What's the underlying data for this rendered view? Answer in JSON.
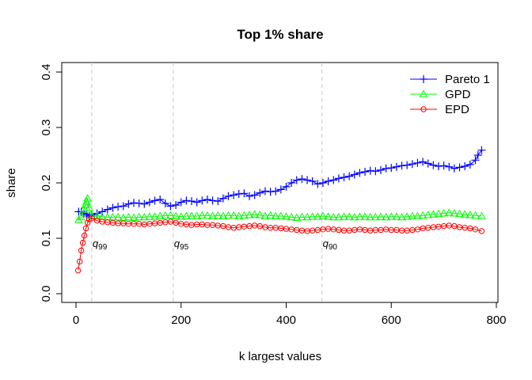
{
  "chart_data": {
    "type": "line",
    "title": "Top 1% share",
    "xlabel": "k largest values",
    "ylabel": "share",
    "xlim": [
      0,
      800
    ],
    "ylim": [
      0,
      0.4
    ],
    "x_ticks": [
      0,
      200,
      400,
      600,
      800
    ],
    "y_ticks": [
      0.0,
      0.1,
      0.2,
      0.3,
      0.4
    ],
    "x_tick_labels": [
      "0",
      "200",
      "400",
      "600",
      "800"
    ],
    "y_tick_labels": [
      "0.0",
      "0.1",
      "0.2",
      "0.3",
      "0.4"
    ],
    "legend_position": "top-right",
    "grid": false,
    "quantile_lines": [
      {
        "label": "q",
        "sub": "99",
        "x": 30
      },
      {
        "label": "q",
        "sub": "95",
        "x": 185
      },
      {
        "label": "q",
        "sub": "90",
        "x": 468
      }
    ],
    "series": [
      {
        "name": "Pareto 1",
        "color": "#0000FF",
        "marker": "plus",
        "points": [
          [
            5,
            0.148
          ],
          [
            10,
            0.148
          ],
          [
            15,
            0.145
          ],
          [
            20,
            0.143
          ],
          [
            25,
            0.14
          ],
          [
            30,
            0.142
          ],
          [
            40,
            0.145
          ],
          [
            50,
            0.148
          ],
          [
            60,
            0.152
          ],
          [
            70,
            0.155
          ],
          [
            80,
            0.157
          ],
          [
            90,
            0.158
          ],
          [
            100,
            0.162
          ],
          [
            110,
            0.164
          ],
          [
            120,
            0.163
          ],
          [
            130,
            0.162
          ],
          [
            140,
            0.165
          ],
          [
            150,
            0.168
          ],
          [
            160,
            0.17
          ],
          [
            170,
            0.163
          ],
          [
            180,
            0.158
          ],
          [
            190,
            0.16
          ],
          [
            200,
            0.165
          ],
          [
            210,
            0.168
          ],
          [
            220,
            0.167
          ],
          [
            230,
            0.165
          ],
          [
            240,
            0.168
          ],
          [
            250,
            0.17
          ],
          [
            260,
            0.168
          ],
          [
            270,
            0.167
          ],
          [
            280,
            0.172
          ],
          [
            290,
            0.176
          ],
          [
            300,
            0.178
          ],
          [
            310,
            0.18
          ],
          [
            320,
            0.181
          ],
          [
            330,
            0.176
          ],
          [
            340,
            0.178
          ],
          [
            350,
            0.182
          ],
          [
            360,
            0.185
          ],
          [
            370,
            0.184
          ],
          [
            380,
            0.185
          ],
          [
            390,
            0.188
          ],
          [
            400,
            0.193
          ],
          [
            410,
            0.2
          ],
          [
            420,
            0.205
          ],
          [
            430,
            0.207
          ],
          [
            440,
            0.205
          ],
          [
            450,
            0.203
          ],
          [
            460,
            0.198
          ],
          [
            470,
            0.2
          ],
          [
            480,
            0.203
          ],
          [
            490,
            0.205
          ],
          [
            500,
            0.208
          ],
          [
            510,
            0.21
          ],
          [
            520,
            0.212
          ],
          [
            530,
            0.215
          ],
          [
            540,
            0.218
          ],
          [
            550,
            0.22
          ],
          [
            560,
            0.222
          ],
          [
            570,
            0.221
          ],
          [
            580,
            0.223
          ],
          [
            590,
            0.226
          ],
          [
            600,
            0.227
          ],
          [
            610,
            0.229
          ],
          [
            620,
            0.231
          ],
          [
            630,
            0.232
          ],
          [
            640,
            0.234
          ],
          [
            650,
            0.236
          ],
          [
            660,
            0.238
          ],
          [
            670,
            0.235
          ],
          [
            680,
            0.232
          ],
          [
            690,
            0.23
          ],
          [
            700,
            0.231
          ],
          [
            710,
            0.229
          ],
          [
            720,
            0.226
          ],
          [
            730,
            0.228
          ],
          [
            740,
            0.23
          ],
          [
            750,
            0.233
          ],
          [
            760,
            0.241
          ],
          [
            765,
            0.25
          ],
          [
            772,
            0.259
          ]
        ]
      },
      {
        "name": "GPD",
        "color": "#00FF00",
        "marker": "triangle",
        "points": [
          [
            5,
            0.133
          ],
          [
            10,
            0.138
          ],
          [
            15,
            0.152
          ],
          [
            18,
            0.16
          ],
          [
            20,
            0.166
          ],
          [
            22,
            0.172
          ],
          [
            25,
            0.155
          ],
          [
            30,
            0.14
          ],
          [
            40,
            0.14
          ],
          [
            50,
            0.139
          ],
          [
            60,
            0.138
          ],
          [
            70,
            0.138
          ],
          [
            80,
            0.138
          ],
          [
            90,
            0.137
          ],
          [
            100,
            0.138
          ],
          [
            110,
            0.137
          ],
          [
            120,
            0.138
          ],
          [
            130,
            0.138
          ],
          [
            140,
            0.139
          ],
          [
            150,
            0.139
          ],
          [
            160,
            0.14
          ],
          [
            170,
            0.141
          ],
          [
            180,
            0.141
          ],
          [
            190,
            0.14
          ],
          [
            200,
            0.139
          ],
          [
            210,
            0.14
          ],
          [
            220,
            0.14
          ],
          [
            230,
            0.14
          ],
          [
            240,
            0.141
          ],
          [
            250,
            0.141
          ],
          [
            260,
            0.14
          ],
          [
            270,
            0.141
          ],
          [
            280,
            0.14
          ],
          [
            290,
            0.141
          ],
          [
            300,
            0.141
          ],
          [
            310,
            0.14
          ],
          [
            320,
            0.141
          ],
          [
            330,
            0.142
          ],
          [
            340,
            0.143
          ],
          [
            350,
            0.142
          ],
          [
            360,
            0.14
          ],
          [
            370,
            0.141
          ],
          [
            380,
            0.14
          ],
          [
            390,
            0.14
          ],
          [
            400,
            0.139
          ],
          [
            410,
            0.138
          ],
          [
            420,
            0.137
          ],
          [
            430,
            0.138
          ],
          [
            440,
            0.138
          ],
          [
            450,
            0.139
          ],
          [
            460,
            0.139
          ],
          [
            470,
            0.14
          ],
          [
            480,
            0.139
          ],
          [
            490,
            0.138
          ],
          [
            500,
            0.138
          ],
          [
            510,
            0.139
          ],
          [
            520,
            0.139
          ],
          [
            530,
            0.138
          ],
          [
            540,
            0.139
          ],
          [
            550,
            0.139
          ],
          [
            560,
            0.138
          ],
          [
            570,
            0.138
          ],
          [
            580,
            0.139
          ],
          [
            590,
            0.138
          ],
          [
            600,
            0.139
          ],
          [
            610,
            0.139
          ],
          [
            620,
            0.138
          ],
          [
            630,
            0.139
          ],
          [
            640,
            0.14
          ],
          [
            650,
            0.14
          ],
          [
            660,
            0.141
          ],
          [
            670,
            0.142
          ],
          [
            680,
            0.143
          ],
          [
            690,
            0.144
          ],
          [
            700,
            0.145
          ],
          [
            710,
            0.146
          ],
          [
            720,
            0.145
          ],
          [
            730,
            0.144
          ],
          [
            740,
            0.143
          ],
          [
            750,
            0.142
          ],
          [
            760,
            0.141
          ],
          [
            772,
            0.14
          ]
        ]
      },
      {
        "name": "EPD",
        "color": "#FF0000",
        "marker": "circle",
        "points": [
          [
            4,
            0.042
          ],
          [
            7,
            0.058
          ],
          [
            10,
            0.078
          ],
          [
            13,
            0.092
          ],
          [
            16,
            0.105
          ],
          [
            19,
            0.118
          ],
          [
            22,
            0.128
          ],
          [
            25,
            0.134
          ],
          [
            30,
            0.136
          ],
          [
            40,
            0.132
          ],
          [
            50,
            0.13
          ],
          [
            60,
            0.129
          ],
          [
            70,
            0.128
          ],
          [
            80,
            0.127
          ],
          [
            90,
            0.127
          ],
          [
            100,
            0.126
          ],
          [
            110,
            0.126
          ],
          [
            120,
            0.126
          ],
          [
            130,
            0.125
          ],
          [
            140,
            0.126
          ],
          [
            150,
            0.127
          ],
          [
            160,
            0.128
          ],
          [
            170,
            0.129
          ],
          [
            180,
            0.13
          ],
          [
            190,
            0.128
          ],
          [
            200,
            0.126
          ],
          [
            210,
            0.125
          ],
          [
            220,
            0.124
          ],
          [
            230,
            0.125
          ],
          [
            240,
            0.125
          ],
          [
            250,
            0.124
          ],
          [
            260,
            0.124
          ],
          [
            270,
            0.123
          ],
          [
            280,
            0.122
          ],
          [
            290,
            0.12
          ],
          [
            300,
            0.119
          ],
          [
            310,
            0.12
          ],
          [
            320,
            0.121
          ],
          [
            330,
            0.122
          ],
          [
            340,
            0.123
          ],
          [
            350,
            0.122
          ],
          [
            360,
            0.12
          ],
          [
            370,
            0.119
          ],
          [
            380,
            0.119
          ],
          [
            390,
            0.118
          ],
          [
            400,
            0.117
          ],
          [
            410,
            0.116
          ],
          [
            420,
            0.115
          ],
          [
            430,
            0.114
          ],
          [
            440,
            0.113
          ],
          [
            450,
            0.114
          ],
          [
            460,
            0.115
          ],
          [
            470,
            0.116
          ],
          [
            480,
            0.117
          ],
          [
            490,
            0.116
          ],
          [
            500,
            0.115
          ],
          [
            510,
            0.114
          ],
          [
            520,
            0.114
          ],
          [
            530,
            0.115
          ],
          [
            540,
            0.116
          ],
          [
            550,
            0.115
          ],
          [
            560,
            0.114
          ],
          [
            570,
            0.115
          ],
          [
            580,
            0.115
          ],
          [
            590,
            0.116
          ],
          [
            600,
            0.115
          ],
          [
            610,
            0.115
          ],
          [
            620,
            0.114
          ],
          [
            630,
            0.114
          ],
          [
            640,
            0.115
          ],
          [
            650,
            0.116
          ],
          [
            660,
            0.118
          ],
          [
            670,
            0.119
          ],
          [
            680,
            0.12
          ],
          [
            690,
            0.121
          ],
          [
            700,
            0.122
          ],
          [
            710,
            0.123
          ],
          [
            720,
            0.122
          ],
          [
            730,
            0.12
          ],
          [
            740,
            0.119
          ],
          [
            750,
            0.118
          ],
          [
            760,
            0.116
          ],
          [
            772,
            0.113
          ]
        ]
      }
    ]
  }
}
